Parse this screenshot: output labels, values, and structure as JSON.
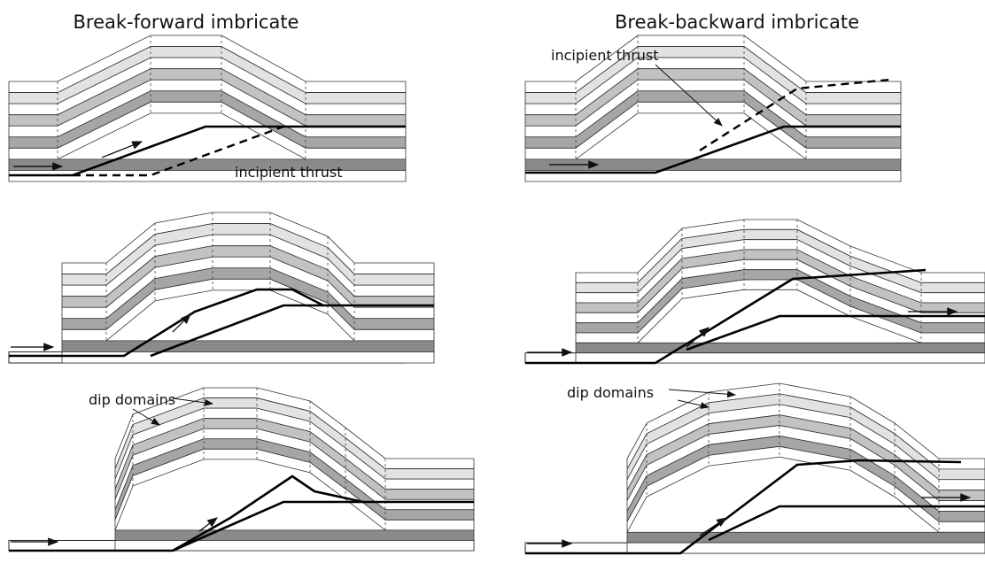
{
  "left": {
    "title": "Break-forward imbricate",
    "incipient_thrust": "incipient thrust",
    "dip_domains": "dip domains"
  },
  "right": {
    "title": "Break-backward imbricate",
    "incipient_thrust": "incipient thrust",
    "dip_domains": "dip domains"
  }
}
